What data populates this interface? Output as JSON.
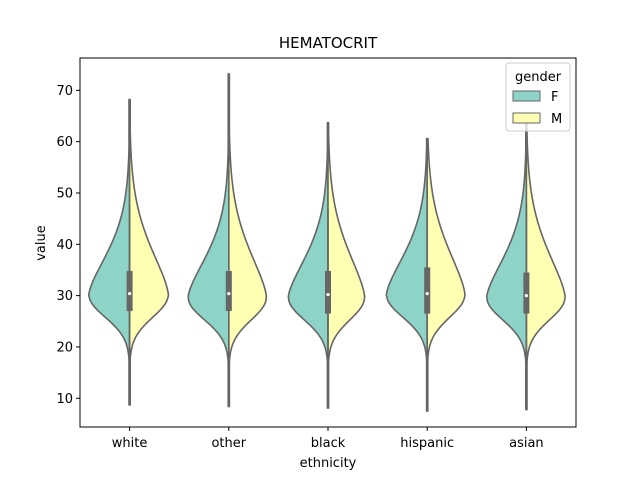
{
  "chart_data": {
    "type": "violin",
    "split": true,
    "title": "HEMATOCRIT",
    "xlabel": "ethnicity",
    "ylabel": "value",
    "ylim": [
      4.4,
      76.3
    ],
    "yticks": [
      10,
      20,
      30,
      40,
      50,
      60,
      70
    ],
    "categories": [
      "white",
      "other",
      "black",
      "hispanic",
      "asian"
    ],
    "legend": {
      "title": "gender",
      "position": "top-right"
    },
    "series": [
      {
        "name": "F",
        "color": "#8dd3c7"
      },
      {
        "name": "M",
        "color": "#ffffb3"
      }
    ],
    "colors": {
      "outline": "#666666",
      "box": "#666666",
      "median": "#ffffff"
    },
    "violins": [
      {
        "category": "white",
        "min": 8.7,
        "max": 68.2,
        "mode": 30,
        "q1": 27.0,
        "median": 30.4,
        "q3": 34.8,
        "whisker_low": 17.5,
        "whisker_high": 48.0,
        "f_peak_halfwidth": 0.4,
        "m_peak_halfwidth": 0.38
      },
      {
        "category": "other",
        "min": 8.4,
        "max": 73.2,
        "mode": 29.5,
        "q1": 27.0,
        "median": 30.4,
        "q3": 34.8,
        "whisker_low": 18.0,
        "whisker_high": 49.0,
        "f_peak_halfwidth": 0.4,
        "m_peak_halfwidth": 0.37
      },
      {
        "category": "black",
        "min": 8.1,
        "max": 63.7,
        "mode": 29.5,
        "q1": 26.5,
        "median": 30.2,
        "q3": 34.8,
        "whisker_low": 18.0,
        "whisker_high": 47.0,
        "f_peak_halfwidth": 0.39,
        "m_peak_halfwidth": 0.36
      },
      {
        "category": "hispanic",
        "min": 7.5,
        "max": 60.6,
        "mode": 30,
        "q1": 26.5,
        "median": 30.4,
        "q3": 35.5,
        "whisker_low": 17.5,
        "whisker_high": 47.5,
        "f_peak_halfwidth": 0.4,
        "m_peak_halfwidth": 0.37
      },
      {
        "category": "asian",
        "min": 7.8,
        "max": 65.0,
        "mode": 29.5,
        "q1": 26.5,
        "median": 30.0,
        "q3": 34.5,
        "whisker_low": 17.5,
        "whisker_high": 48.0,
        "f_peak_halfwidth": 0.39,
        "m_peak_halfwidth": 0.38
      }
    ],
    "grid": false
  }
}
